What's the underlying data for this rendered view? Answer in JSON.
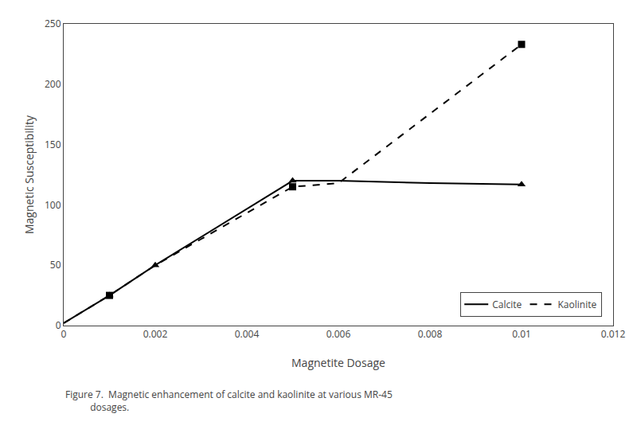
{
  "chart_data": {
    "type": "line",
    "xlabel": "Magnetite Dosage",
    "ylabel": "Magnetic Susceptibility",
    "caption": "Figure 7.  Magnetic enhancement of calcite and kaolinite at various MR-45\n          dosages.",
    "series": [
      {
        "name": "Calcite",
        "color": "#000000",
        "line_style": "solid",
        "marker": "triangle",
        "x": [
          0,
          0.001,
          0.002,
          0.005,
          0.006,
          0.008,
          0.01
        ],
        "values": [
          2,
          25,
          50,
          120,
          120,
          118,
          117
        ],
        "marker_x": [
          0.001,
          0.002,
          0.005,
          0.01
        ],
        "marker_values": [
          25,
          50,
          120,
          117
        ]
      },
      {
        "name": "Kaolinite",
        "color": "#000000",
        "line_style": "dashed",
        "marker": "square",
        "x": [
          0,
          0.001,
          0.002,
          0.005,
          0.006,
          0.01
        ],
        "values": [
          2,
          25,
          50,
          115,
          118,
          233
        ],
        "marker_x": [
          0.001,
          0.005,
          0.01
        ],
        "marker_values": [
          25,
          115,
          233
        ]
      }
    ],
    "xlim": [
      0,
      0.012
    ],
    "ylim": [
      0,
      250
    ],
    "xticks": [
      0,
      0.002,
      0.004,
      0.006,
      0.008,
      0.01,
      0.012
    ],
    "yticks": [
      0,
      50,
      100,
      150,
      200,
      250
    ],
    "grid": false,
    "legend": "lower right"
  }
}
